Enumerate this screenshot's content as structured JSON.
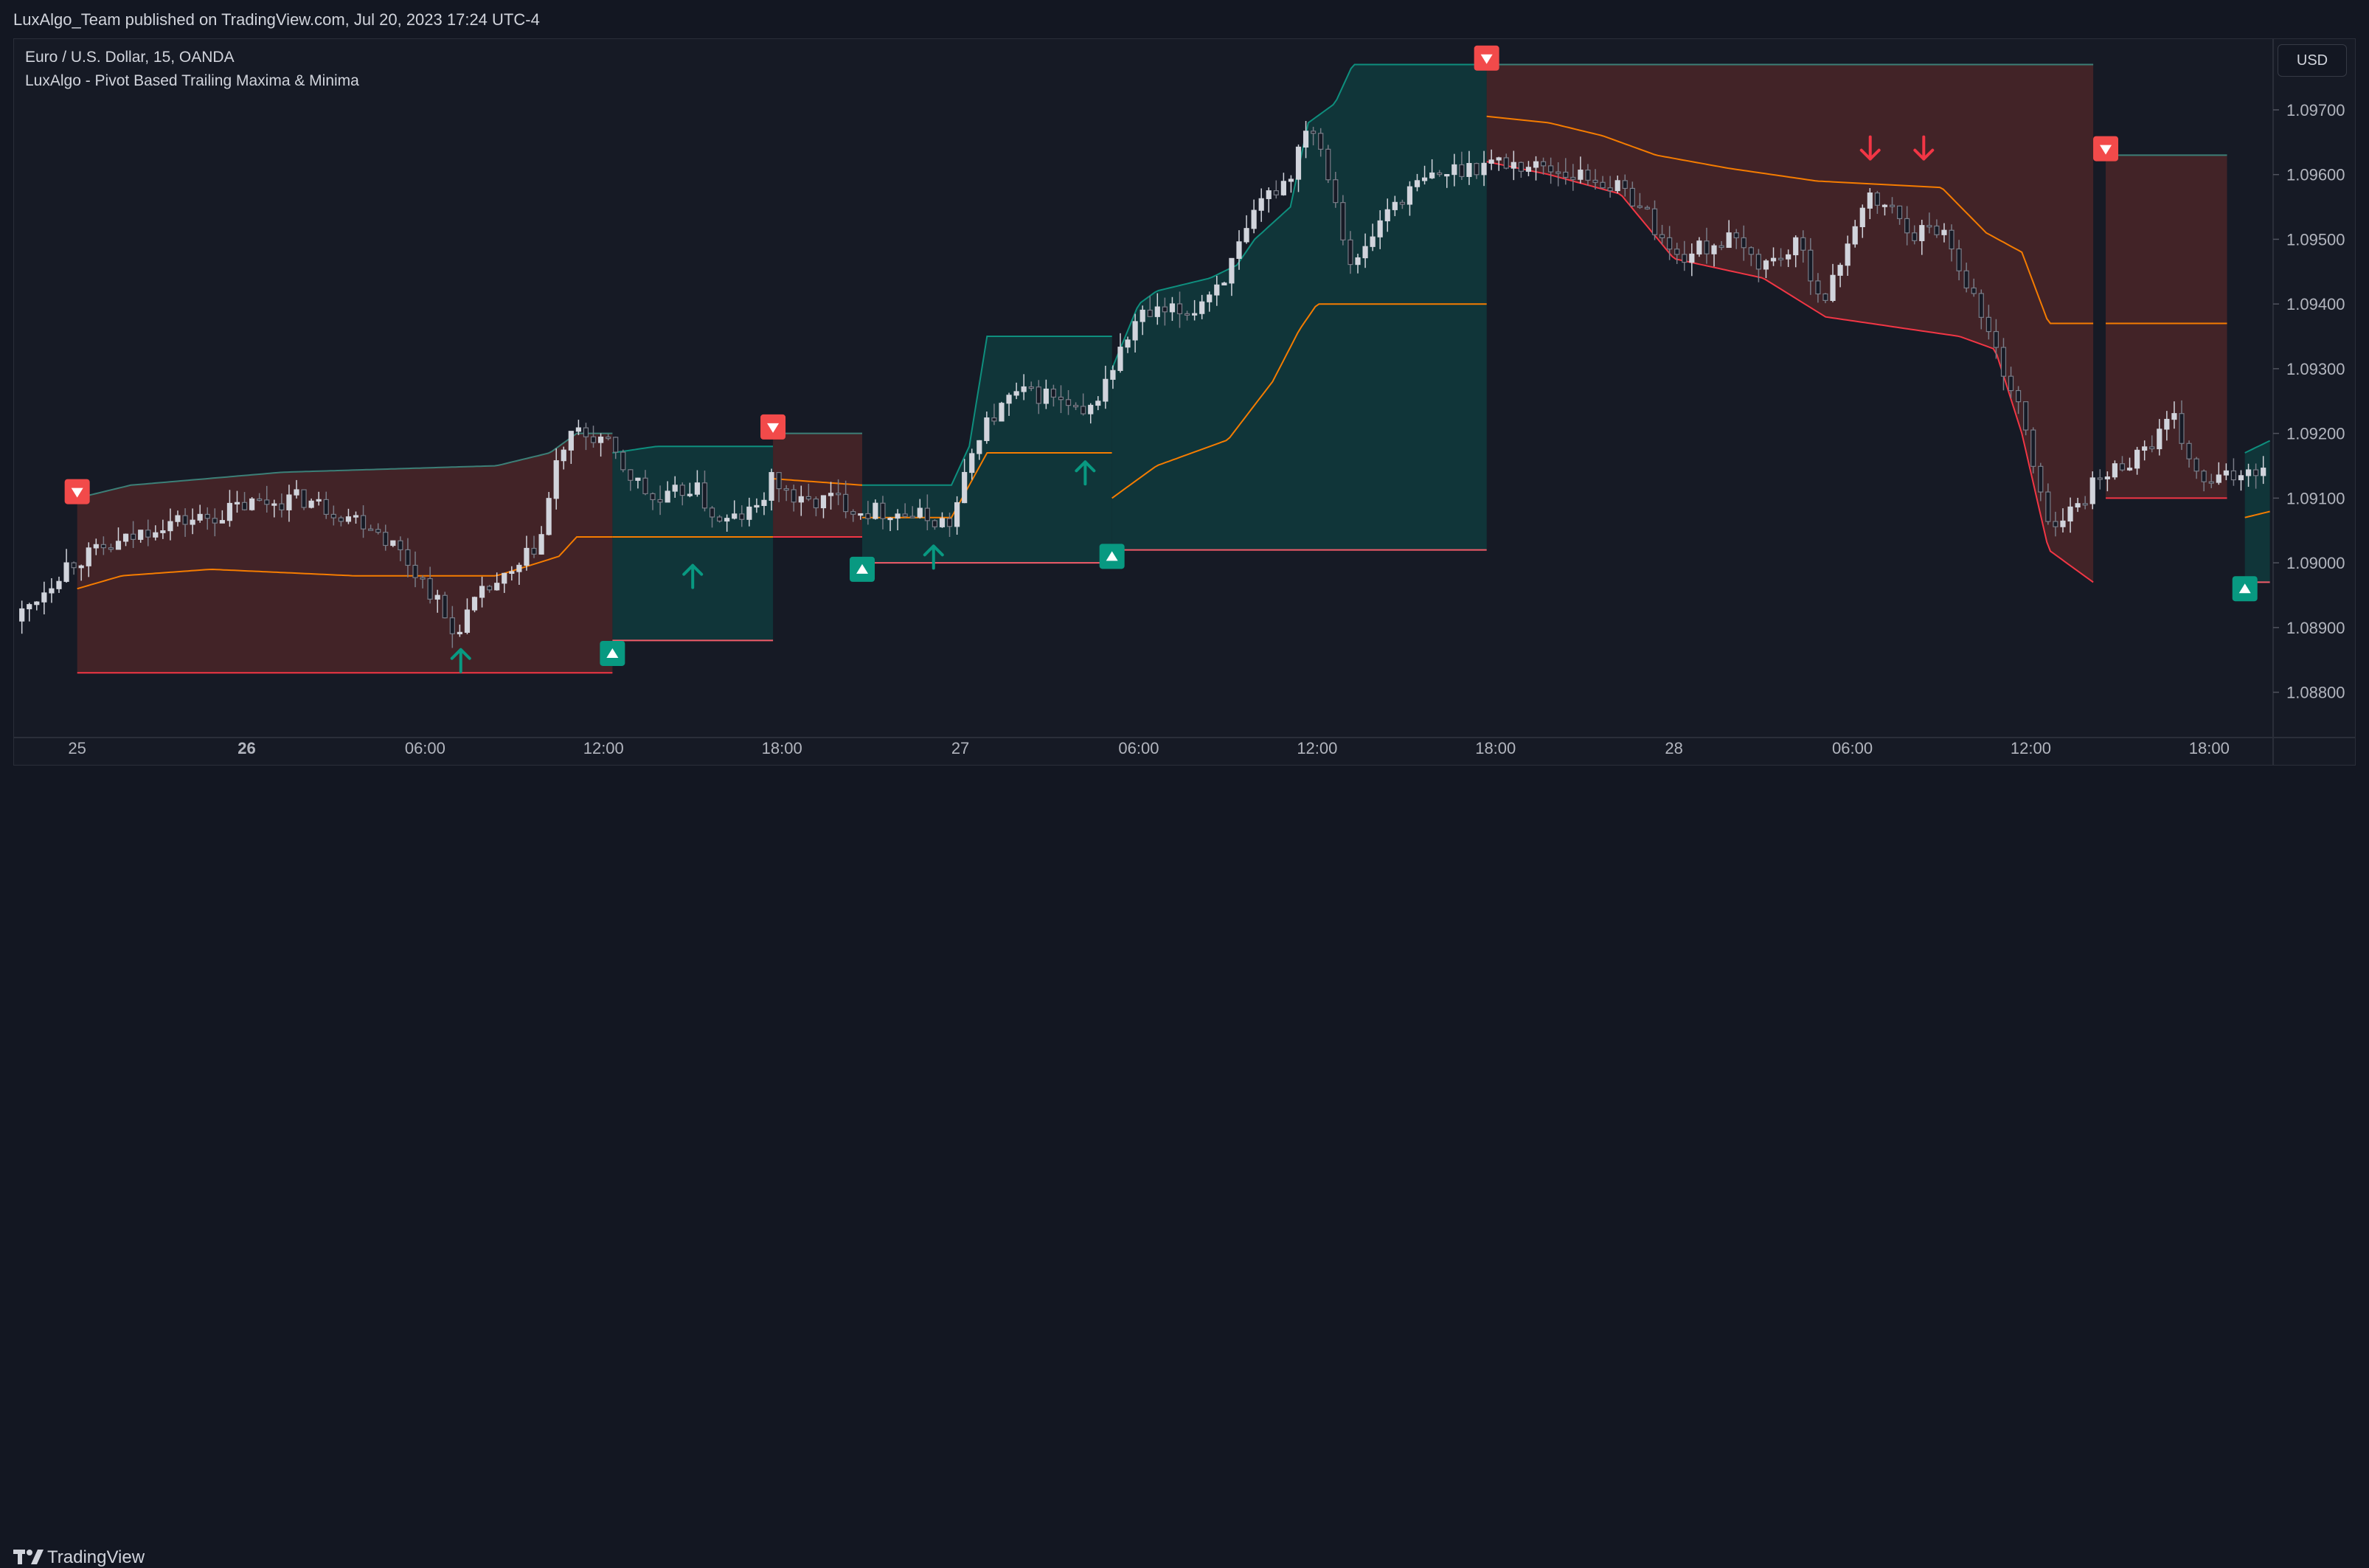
{
  "header": {
    "publish_text": "LuxAlgo_Team published on TradingView.com, Jul 20, 2023 17:24 UTC-4"
  },
  "legend": {
    "symbol_line": "Euro / U.S. Dollar, 15, OANDA",
    "indicator_line": "LuxAlgo - Pivot Based Trailing Maxima & Minima"
  },
  "currency_button": "USD",
  "footer": {
    "brand": "TradingView"
  },
  "colors": {
    "background": "#161a25",
    "bull_fill": "#0f3b3d",
    "bear_fill": "#4a2628",
    "bull_line": "#0e8f7e",
    "bear_line": "#f23645",
    "mid_line": "#f57c00",
    "candle_up": "#d1d4dc",
    "candle_down": "#787b86",
    "signal_up": "#089981",
    "signal_down": "#f23645"
  },
  "chart_data": {
    "type": "candlestick",
    "title": "Euro / U.S. Dollar, 15, OANDA",
    "indicator": "LuxAlgo - Pivot Based Trailing Maxima & Minima",
    "x_ticks": [
      {
        "label": "25",
        "t": 0.05,
        "bold": false
      },
      {
        "label": "26",
        "t": 1.0,
        "bold": true
      },
      {
        "label": "06:00",
        "t": 2.0,
        "bold": false
      },
      {
        "label": "12:00",
        "t": 3.0,
        "bold": false
      },
      {
        "label": "18:00",
        "t": 4.0,
        "bold": false
      },
      {
        "label": "27",
        "t": 5.0,
        "bold": false
      },
      {
        "label": "06:00",
        "t": 6.0,
        "bold": false
      },
      {
        "label": "12:00",
        "t": 7.0,
        "bold": false
      },
      {
        "label": "18:00",
        "t": 8.0,
        "bold": false
      },
      {
        "label": "28",
        "t": 9.0,
        "bold": false
      },
      {
        "label": "06:00",
        "t": 10.0,
        "bold": false
      },
      {
        "label": "12:00",
        "t": 11.0,
        "bold": false
      },
      {
        "label": "18:00",
        "t": 12.0,
        "bold": false
      }
    ],
    "y_ticks": [
      "1.08800",
      "1.08900",
      "1.09000",
      "1.09100",
      "1.09200",
      "1.09300",
      "1.09400",
      "1.09500",
      "1.09600",
      "1.09700"
    ],
    "ylim": [
      1.0873,
      1.0979
    ],
    "xlim": [
      -0.3,
      12.35
    ],
    "regions": [
      {
        "dir": "bear",
        "t0": 0.05,
        "t1": 3.05,
        "top": [
          [
            0.05,
            1.091
          ],
          [
            0.35,
            1.0912
          ],
          [
            1.2,
            1.0914
          ],
          [
            2.4,
            1.0915
          ],
          [
            2.7,
            1.0917
          ],
          [
            2.85,
            1.092
          ],
          [
            3.05,
            1.092
          ]
        ],
        "bottom": 1.0883,
        "mid": [
          [
            0.05,
            1.0896
          ],
          [
            0.3,
            1.0898
          ],
          [
            0.8,
            1.0899
          ],
          [
            1.6,
            1.0898
          ],
          [
            2.4,
            1.0898
          ],
          [
            2.75,
            1.0901
          ],
          [
            2.85,
            1.0904
          ],
          [
            3.05,
            1.0904
          ]
        ]
      },
      {
        "dir": "bull",
        "t0": 3.05,
        "t1": 3.95,
        "top": [
          [
            3.05,
            1.0917
          ],
          [
            3.3,
            1.0918
          ],
          [
            3.95,
            1.0918
          ]
        ],
        "bottom": 1.0888,
        "mid": [
          [
            3.05,
            1.0904
          ],
          [
            3.95,
            1.0904
          ]
        ]
      },
      {
        "dir": "bear",
        "t0": 3.95,
        "t1": 4.45,
        "top": [
          [
            3.95,
            1.092
          ],
          [
            4.45,
            1.092
          ]
        ],
        "bottom": 1.0904,
        "mid": [
          [
            3.95,
            1.0913
          ],
          [
            4.45,
            1.0912
          ]
        ]
      },
      {
        "dir": "bull",
        "t0": 4.45,
        "t1": 5.85,
        "top": [
          [
            4.45,
            1.0912
          ],
          [
            4.95,
            1.0912
          ],
          [
            5.05,
            1.0918
          ],
          [
            5.15,
            1.0935
          ],
          [
            5.85,
            1.0935
          ]
        ],
        "bottom": 1.09,
        "mid": [
          [
            4.45,
            1.0907
          ],
          [
            4.95,
            1.0907
          ],
          [
            5.05,
            1.0912
          ],
          [
            5.15,
            1.0917
          ],
          [
            5.85,
            1.0917
          ]
        ]
      },
      {
        "dir": "bull",
        "t0": 5.85,
        "t1": 7.95,
        "top": [
          [
            5.85,
            1.093
          ],
          [
            6.0,
            1.094
          ],
          [
            6.1,
            1.0942
          ],
          [
            6.4,
            1.0944
          ],
          [
            6.55,
            1.0946
          ],
          [
            6.65,
            1.095
          ],
          [
            6.85,
            1.0955
          ],
          [
            6.95,
            1.0968
          ],
          [
            7.1,
            1.0971
          ],
          [
            7.2,
            1.0977
          ],
          [
            7.95,
            1.0977
          ]
        ],
        "bottom": 1.0902,
        "mid": [
          [
            5.85,
            1.091
          ],
          [
            6.0,
            1.0913
          ],
          [
            6.1,
            1.0915
          ],
          [
            6.5,
            1.0919
          ],
          [
            6.75,
            1.0928
          ],
          [
            6.9,
            1.0936
          ],
          [
            7.0,
            1.094
          ],
          [
            7.95,
            1.094
          ]
        ]
      },
      {
        "dir": "bear",
        "t0": 7.95,
        "t1": 11.35,
        "top": [
          [
            7.95,
            1.0977
          ],
          [
            11.35,
            1.0977
          ]
        ],
        "bottom": [
          [
            7.95,
            1.0962
          ],
          [
            8.3,
            1.096
          ],
          [
            8.7,
            1.0957
          ],
          [
            9.0,
            1.0947
          ],
          [
            9.5,
            1.0944
          ],
          [
            9.85,
            1.0938
          ],
          [
            10.6,
            1.0935
          ],
          [
            10.8,
            1.0933
          ],
          [
            10.95,
            1.092
          ],
          [
            11.1,
            1.0902
          ],
          [
            11.35,
            1.0897
          ]
        ],
        "mid": [
          [
            7.95,
            1.0969
          ],
          [
            8.3,
            1.0968
          ],
          [
            8.6,
            1.0966
          ],
          [
            8.9,
            1.0963
          ],
          [
            9.3,
            1.0961
          ],
          [
            9.8,
            1.0959
          ],
          [
            10.5,
            1.0958
          ],
          [
            10.75,
            1.0951
          ],
          [
            10.95,
            1.0948
          ],
          [
            11.1,
            1.0937
          ],
          [
            11.35,
            1.0937
          ]
        ]
      },
      {
        "dir": "bear",
        "t0": 11.42,
        "t1": 12.1,
        "top": [
          [
            11.42,
            1.0963
          ],
          [
            12.1,
            1.0963
          ]
        ],
        "bottom": 1.091,
        "mid": [
          [
            11.42,
            1.0937
          ],
          [
            12.1,
            1.0937
          ]
        ]
      },
      {
        "dir": "bull",
        "t0": 12.2,
        "t1": 12.35,
        "top": [
          [
            12.2,
            1.0917
          ],
          [
            12.35,
            1.0919
          ]
        ],
        "bottom": 1.0897,
        "mid": [
          [
            12.2,
            1.0907
          ],
          [
            12.35,
            1.0908
          ]
        ]
      }
    ],
    "close_path": [
      [
        -0.3,
        1.0891
      ],
      [
        0.0,
        1.09
      ],
      [
        0.3,
        1.0903
      ],
      [
        0.5,
        1.0906
      ],
      [
        0.8,
        1.0907
      ],
      [
        1.0,
        1.0909
      ],
      [
        1.3,
        1.091
      ],
      [
        1.5,
        1.0908
      ],
      [
        1.7,
        1.0906
      ],
      [
        1.85,
        1.0902
      ],
      [
        2.05,
        1.0895
      ],
      [
        2.15,
        1.0889
      ],
      [
        2.35,
        1.0896
      ],
      [
        2.5,
        1.0898
      ],
      [
        2.65,
        1.0904
      ],
      [
        2.75,
        1.0917
      ],
      [
        2.85,
        1.092
      ],
      [
        3.0,
        1.0919
      ],
      [
        3.1,
        1.0915
      ],
      [
        3.3,
        1.0909
      ],
      [
        3.5,
        1.0912
      ],
      [
        3.65,
        1.0906
      ],
      [
        3.85,
        1.0908
      ],
      [
        3.95,
        1.0913
      ],
      [
        4.1,
        1.0909
      ],
      [
        4.3,
        1.091
      ],
      [
        4.45,
        1.0908
      ],
      [
        4.6,
        1.0908
      ],
      [
        4.8,
        1.0907
      ],
      [
        4.95,
        1.0906
      ],
      [
        5.1,
        1.092
      ],
      [
        5.3,
        1.0926
      ],
      [
        5.5,
        1.0926
      ],
      [
        5.7,
        1.0922
      ],
      [
        5.85,
        1.093
      ],
      [
        6.0,
        1.0938
      ],
      [
        6.3,
        1.0939
      ],
      [
        6.5,
        1.0945
      ],
      [
        6.7,
        1.0956
      ],
      [
        6.85,
        1.096
      ],
      [
        6.95,
        1.0969
      ],
      [
        7.05,
        1.0962
      ],
      [
        7.2,
        1.0945
      ],
      [
        7.4,
        1.0955
      ],
      [
        7.6,
        1.0959
      ],
      [
        7.8,
        1.0961
      ],
      [
        8.0,
        1.0962
      ],
      [
        8.3,
        1.0961
      ],
      [
        8.6,
        1.0959
      ],
      [
        8.8,
        1.0956
      ],
      [
        9.0,
        1.0947
      ],
      [
        9.3,
        1.095
      ],
      [
        9.5,
        1.0946
      ],
      [
        9.7,
        1.0949
      ],
      [
        9.85,
        1.094
      ],
      [
        10.0,
        1.0952
      ],
      [
        10.1,
        1.0956
      ],
      [
        10.2,
        1.0955
      ],
      [
        10.35,
        1.0951
      ],
      [
        10.5,
        1.0952
      ],
      [
        10.65,
        1.0943
      ],
      [
        10.8,
        1.0933
      ],
      [
        10.95,
        1.0923
      ],
      [
        11.05,
        1.091
      ],
      [
        11.15,
        1.0905
      ],
      [
        11.25,
        1.0909
      ],
      [
        11.35,
        1.0912
      ],
      [
        11.5,
        1.0915
      ],
      [
        11.65,
        1.0918
      ],
      [
        11.8,
        1.0922
      ],
      [
        11.95,
        1.0912
      ],
      [
        12.1,
        1.0913
      ],
      [
        12.25,
        1.0915
      ],
      [
        12.35,
        1.0914
      ]
    ],
    "signals": [
      {
        "type": "label-down",
        "t": 0.05,
        "p": 1.0911
      },
      {
        "type": "arrow-up",
        "t": 2.2,
        "p": 1.0885
      },
      {
        "type": "label-up",
        "t": 3.05,
        "p": 1.0886
      },
      {
        "type": "arrow-up",
        "t": 3.5,
        "p": 1.0898
      },
      {
        "type": "label-down",
        "t": 3.95,
        "p": 1.0921
      },
      {
        "type": "label-up",
        "t": 4.45,
        "p": 1.0899
      },
      {
        "type": "arrow-up",
        "t": 4.85,
        "p": 1.0901
      },
      {
        "type": "arrow-up",
        "t": 5.7,
        "p": 1.0914
      },
      {
        "type": "label-up",
        "t": 5.85,
        "p": 1.0901
      },
      {
        "type": "label-down",
        "t": 7.95,
        "p": 1.0978
      },
      {
        "type": "arrow-down",
        "t": 10.1,
        "p": 1.0964
      },
      {
        "type": "arrow-down",
        "t": 10.4,
        "p": 1.0964
      },
      {
        "type": "label-down",
        "t": 11.42,
        "p": 1.0964
      },
      {
        "type": "label-up",
        "t": 12.2,
        "p": 1.0896
      }
    ]
  }
}
